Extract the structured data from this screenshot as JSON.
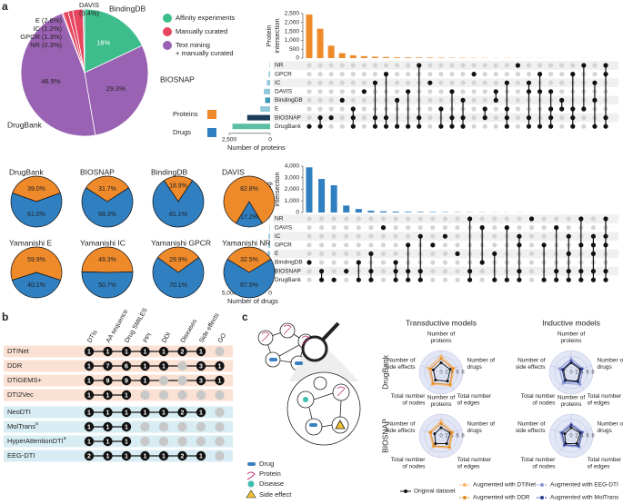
{
  "panel_labels": [
    "a",
    "b",
    "c"
  ],
  "chart_data": [
    {
      "type": "pie",
      "categories": [
        "BindingDB",
        "BIOSNAP",
        "DrugBank",
        "NR",
        "GPCR",
        "IC",
        "E",
        "DAVIS"
      ],
      "values": [
        18,
        29.3,
        46.9,
        0.3,
        1.3,
        1.2,
        2.6,
        0.4
      ],
      "value_labels": [
        "18%",
        "29.3%",
        "46.9%",
        "(0.3%)",
        "(1.3%)",
        "(1.2%)",
        "(2.6%)",
        "(0.4%)"
      ],
      "colors": [
        "#3dbd8b",
        "#9a62b3",
        "#9a62b3",
        "#e8455f",
        "#e8455f",
        "#e8455f",
        "#e8455f",
        "#3dbd8b"
      ],
      "legend": [
        {
          "lines": [
            "Affinity experiments"
          ],
          "color": "#3dbd8b"
        },
        {
          "lines": [
            "Manually curated"
          ],
          "color": "#e8455f"
        },
        {
          "lines": [
            "Text mining",
            "+ manually curated"
          ],
          "color": "#9a62b3"
        }
      ]
    },
    {
      "type": "upset",
      "name": "Proteins",
      "color": "#ef8a2b",
      "ylabel": [
        "Protein",
        "intersection"
      ],
      "ylim": [
        0,
        2500
      ],
      "yticks": [
        0,
        500,
        {
          "value": 1000,
          "label": "1,000"
        },
        {
          "value": 1500,
          "label": "1,500"
        },
        {
          "value": 2000,
          "label": "2,000"
        },
        {
          "value": 2500,
          "label": "2,500"
        }
      ],
      "values": [
        2450,
        1650,
        700,
        280,
        160,
        110,
        80,
        60,
        45,
        40,
        35,
        30,
        25,
        20,
        18,
        15,
        12,
        10,
        9,
        8,
        7,
        6,
        5,
        4,
        3,
        3,
        2,
        1
      ],
      "intersections": [
        [
          7
        ],
        [
          6,
          7
        ],
        [
          6
        ],
        [
          4
        ],
        [
          5,
          6,
          7
        ],
        [
          3
        ],
        [
          2,
          6,
          7
        ],
        [
          1,
          6,
          7
        ],
        [
          4,
          7
        ],
        [
          3,
          7
        ],
        [
          0,
          6,
          7
        ],
        [
          2
        ],
        [
          5,
          7
        ],
        [
          3,
          6,
          7
        ],
        [
          4,
          6,
          7
        ],
        [
          1
        ],
        [
          5,
          6
        ],
        [
          3,
          4
        ],
        [
          2,
          5,
          6,
          7
        ],
        [
          0
        ],
        [
          2,
          3,
          6,
          7
        ],
        [
          1,
          3,
          7
        ],
        [
          3,
          5,
          6,
          7
        ],
        [
          4,
          5
        ],
        [
          1,
          5,
          6,
          7
        ],
        [
          0,
          5
        ],
        [
          2,
          4,
          7
        ],
        [
          0,
          1,
          6,
          7
        ]
      ],
      "sets": [
        "NR",
        "GPCR",
        "IC",
        "DAVIS",
        "BindingDB",
        "E",
        "BIOSNAP",
        "DrugBank"
      ],
      "set_sizes": [
        30,
        90,
        200,
        380,
        300,
        600,
        1400,
        2300
      ],
      "set_colors": [
        "#8fc9d8",
        "#8fc9d8",
        "#8fc9d8",
        "#8fc9d8",
        "#3a9ab5",
        "#8fc9d8",
        "#1d3c5a",
        "#5bbfa6"
      ],
      "xlabel": "Number of proteins",
      "xlim": [
        0,
        2500
      ],
      "xticks": [
        {
          "value": 2500,
          "label": "2,500"
        },
        0
      ]
    },
    {
      "type": "upset",
      "name": "Drugs",
      "color": "#2f7fc1",
      "ylabel": [
        "Drug",
        "intersection"
      ],
      "ylim": [
        0,
        4000
      ],
      "yticks": [
        0,
        {
          "value": 1000,
          "label": "1,000"
        },
        {
          "value": 2000,
          "label": "2,000"
        },
        {
          "value": 3000,
          "label": "3,000"
        },
        {
          "value": 4000,
          "label": "4,000"
        }
      ],
      "values": [
        3900,
        2900,
        2350,
        600,
        300,
        150,
        100,
        80,
        60,
        50,
        40,
        30,
        25,
        20,
        15,
        12,
        10,
        8,
        6,
        5,
        4,
        3,
        2,
        2,
        1
      ],
      "intersections": [
        [
          5
        ],
        [
          6,
          7
        ],
        [
          7
        ],
        [
          6
        ],
        [
          5,
          7
        ],
        [
          4,
          6,
          7
        ],
        [
          1
        ],
        [
          5,
          6,
          7
        ],
        [
          3,
          6,
          7
        ],
        [
          2,
          6,
          7
        ],
        [
          3
        ],
        [
          2
        ],
        [
          4
        ],
        [
          0,
          6,
          7
        ],
        [
          1,
          5
        ],
        [
          4,
          7
        ],
        [
          1,
          7
        ],
        [
          2,
          3,
          6,
          7
        ],
        [
          0
        ],
        [
          3,
          7
        ],
        [
          1,
          6,
          7
        ],
        [
          2,
          4,
          6,
          7
        ],
        [
          0,
          3,
          6,
          7
        ],
        [
          2,
          3,
          4,
          6,
          7
        ],
        [
          0,
          2,
          3,
          6,
          7
        ]
      ],
      "sets": [
        "NR",
        "DAVIS",
        "IC",
        "GPCR",
        "E",
        "BindingDB",
        "BIOSNAP",
        "DrugBank"
      ],
      "set_sizes": [
        50,
        70,
        200,
        230,
        300,
        1200,
        3000,
        2500
      ],
      "set_colors": [
        "#8fc9d8",
        "#8fc9d8",
        "#8fc9d8",
        "#8fc9d8",
        "#8fc9d8",
        "#3a9ab5",
        "#1d3c5a",
        "#5bbfa6"
      ],
      "xlabel": "Number of drugs",
      "xlim": [
        0,
        5000
      ],
      "xticks": [
        {
          "value": 5000,
          "label": "5,000"
        },
        0
      ]
    },
    {
      "type": "pies",
      "colors": [
        "#ef8a2b",
        "#2f7fc1"
      ],
      "pies": [
        {
          "title": "DrugBank",
          "values": [
            39.0,
            61.0
          ],
          "value_labels": [
            "39.0%",
            "61.0%"
          ]
        },
        {
          "title": "BIOSNAP",
          "values": [
            31.7,
            68.3
          ],
          "value_labels": [
            "31.7%",
            "68.3%"
          ]
        },
        {
          "title": "BindingDB",
          "values": [
            18.9,
            81.1
          ],
          "value_labels": [
            "18.9%",
            "81.1%"
          ]
        },
        {
          "title": "DAVIS",
          "values": [
            82.8,
            17.2
          ],
          "value_labels": [
            "82.8%",
            "17.2%"
          ]
        },
        {
          "title": "Yamanishi E",
          "values": [
            59.9,
            40.1
          ],
          "value_labels": [
            "59.9%",
            "40.1%"
          ]
        },
        {
          "title": "Yamanishi IC",
          "values": [
            49.3,
            50.7
          ],
          "value_labels": [
            "49.3%",
            "50.7%"
          ]
        },
        {
          "title": "Yamanishi GPCR",
          "values": [
            29.9,
            70.1
          ],
          "value_labels": [
            "29.9%",
            "70.1%"
          ]
        },
        {
          "title": "Yamanishi NR",
          "values": [
            32.5,
            67.5
          ],
          "value_labels": [
            "32.5%",
            "67.5%"
          ]
        }
      ]
    },
    {
      "type": "radar",
      "titles": [
        "Transductive models",
        "Inductive models"
      ],
      "rows": [
        "DrugBank",
        "BIOSNAP"
      ],
      "axes": [
        [
          "Number of",
          "proteins"
        ],
        [
          "Number of",
          "drugs"
        ],
        [
          "Total number",
          "of edges"
        ],
        [
          "Total number",
          "of nodes"
        ],
        [
          "Number of",
          "side effects"
        ]
      ],
      "ylim": [
        0,
        8
      ],
      "yticks": [
        0,
        2,
        4,
        6,
        8
      ],
      "series": [
        {
          "name": "Original dataset",
          "color": "#111111",
          "values": [
            [
              3.5,
              3.5,
              4,
              3.5,
              3
            ],
            [
              3.5,
              3.5,
              4,
              3.5,
              3
            ],
            [
              3,
              3.5,
              3.5,
              3.5,
              2.5
            ],
            [
              3,
              3.5,
              3.5,
              3.5,
              2.5
            ]
          ]
        },
        {
          "name": "Augmented with DTINet",
          "color": "#f5b66b",
          "values": [
            [
              6,
              5,
              6,
              5.5,
              5
            ],
            null,
            [
              5.5,
              4.5,
              5.5,
              5,
              4.5
            ],
            null
          ]
        },
        {
          "name": "Augmented with DDR",
          "color": "#e58a1f",
          "values": [
            [
              5,
              4.5,
              5.5,
              5,
              4
            ],
            null,
            [
              4.5,
              4,
              5,
              4.5,
              4
            ],
            null
          ]
        },
        {
          "name": "Augmented with EEG-DTI",
          "color": "#8c97d6",
          "values": [
            null,
            [
              5,
              4.5,
              5.5,
              5,
              4.5
            ],
            null,
            [
              4.5,
              4.5,
              5,
              4.5,
              4
            ]
          ]
        },
        {
          "name": "Augmented with MolTrans",
          "color": "#2c3f8f",
          "values": [
            null,
            [
              4,
              4,
              4.5,
              4,
              3.5
            ],
            null,
            [
              4,
              4,
              4.5,
              4,
              3.5
            ]
          ]
        }
      ]
    }
  ],
  "table": {
    "columns": [
      "DTIs",
      "AA sequence",
      "Drug SMILES",
      "PPI",
      "DDI",
      "Diseases",
      "Side effects",
      "GO"
    ],
    "rows": [
      {
        "name": "DTINet",
        "color": "#fbe1d3",
        "values": [
          1,
          1,
          1,
          1,
          1,
          2,
          1,
          null
        ]
      },
      {
        "name": "DDR",
        "color": "#fbe1d3",
        "values": [
          1,
          7,
          6,
          1,
          1,
          null,
          3,
          1
        ]
      },
      {
        "name": "DTiGEMS+",
        "color": "#fbe1d3",
        "values": [
          1,
          9,
          9,
          1,
          null,
          null,
          3,
          1
        ]
      },
      {
        "name": "DTI2Vec",
        "color": "#fbe1d3",
        "values": [
          1,
          1,
          1,
          null,
          null,
          null,
          null,
          null
        ]
      },
      {
        "name": "NeoDTI",
        "color": "#d7edf3",
        "values": [
          1,
          1,
          1,
          1,
          1,
          2,
          1,
          null
        ]
      },
      {
        "name": "MolTrans",
        "note": "a",
        "color": "#d7edf3",
        "values": [
          1,
          1,
          1,
          null,
          null,
          null,
          null,
          null
        ]
      },
      {
        "name": "HyperAttentionDTI",
        "note": "a",
        "color": "#d7edf3",
        "values": [
          1,
          1,
          1,
          null,
          null,
          null,
          null,
          null
        ]
      },
      {
        "name": "EEG-DTI",
        "color": "#d7edf3",
        "values": [
          2,
          1,
          1,
          1,
          1,
          2,
          1,
          null
        ]
      }
    ]
  },
  "diagram": {
    "legend": [
      "Drug",
      "Protein",
      "Disease",
      "Side effect"
    ]
  }
}
